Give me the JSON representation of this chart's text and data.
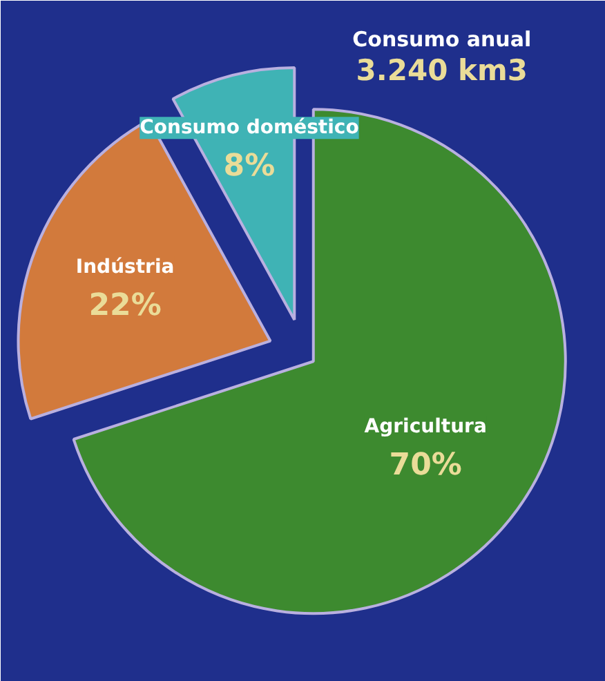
{
  "chart_data": {
    "type": "pie",
    "title": "Consumo anual",
    "subtitle": "3.240 km3",
    "categories": [
      "Agricultura",
      "Indústria",
      "Consumo doméstico"
    ],
    "values": [
      70,
      22,
      8
    ],
    "colors": [
      "#3d8a2f",
      "#d27a3c",
      "#3fb3b5"
    ],
    "value_labels": [
      "70%",
      "22%",
      "8%"
    ]
  }
}
